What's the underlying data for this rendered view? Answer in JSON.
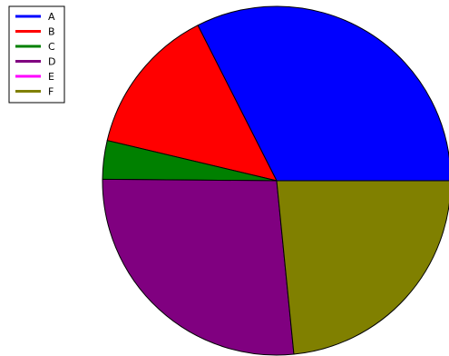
{
  "chart_data": {
    "type": "pie",
    "title": "",
    "start_angle_deg": 0,
    "direction": "counterclockwise",
    "legend_placement": "top-left",
    "slices": [
      {
        "label": "A",
        "value": 35.5,
        "color": "#0000ff"
      },
      {
        "label": "B",
        "value": 15.1,
        "color": "#ff0000"
      },
      {
        "label": "C",
        "value": 3.9,
        "color": "#008000"
      },
      {
        "label": "D",
        "value": 29.2,
        "color": "#800080"
      },
      {
        "label": "E",
        "value": 0.0,
        "color": "#ff00ff"
      },
      {
        "label": "F",
        "value": 25.6,
        "color": "#808000"
      }
    ]
  }
}
